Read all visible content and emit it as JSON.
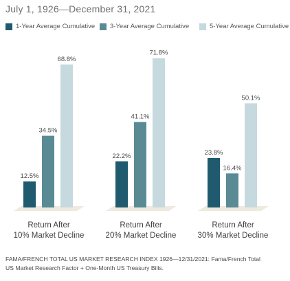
{
  "chart_data": {
    "type": "bar",
    "subtitle": "July 1, 1926—December 31, 2021",
    "categories": [
      [
        "Return After",
        "10% Market Decline"
      ],
      [
        "Return After",
        "20% Market Decline"
      ],
      [
        "Return After",
        "30% Market Decline"
      ]
    ],
    "series": [
      {
        "name": "1-Year Average Cumulative",
        "values": [
          12.5,
          22.2,
          23.8
        ],
        "labels": [
          "12.5%",
          "22.2%",
          "23.8%"
        ],
        "color": "#1f5a6e"
      },
      {
        "name": "3-Year Average Cumulative",
        "values": [
          34.5,
          41.1,
          16.4
        ],
        "labels": [
          "34.5%",
          "41.1%",
          "16.4%"
        ],
        "color": "#5a8b95"
      },
      {
        "name": "5-Year Average Cumulative",
        "values": [
          68.8,
          71.8,
          50.1
        ],
        "labels": [
          "68.8%",
          "71.8%",
          "50.1%"
        ],
        "color": "#c6d9de"
      }
    ],
    "ylim": [
      0,
      76
    ],
    "grid": false,
    "legend_position": "top"
  },
  "footnote": {
    "line1": "FAMA/FRENCH TOTAL US MARKET RESEARCH INDEX 1926—12/31/2021: Fama/French Total",
    "line2": "US Market Research Factor + One-Month US Treasury Bills."
  }
}
